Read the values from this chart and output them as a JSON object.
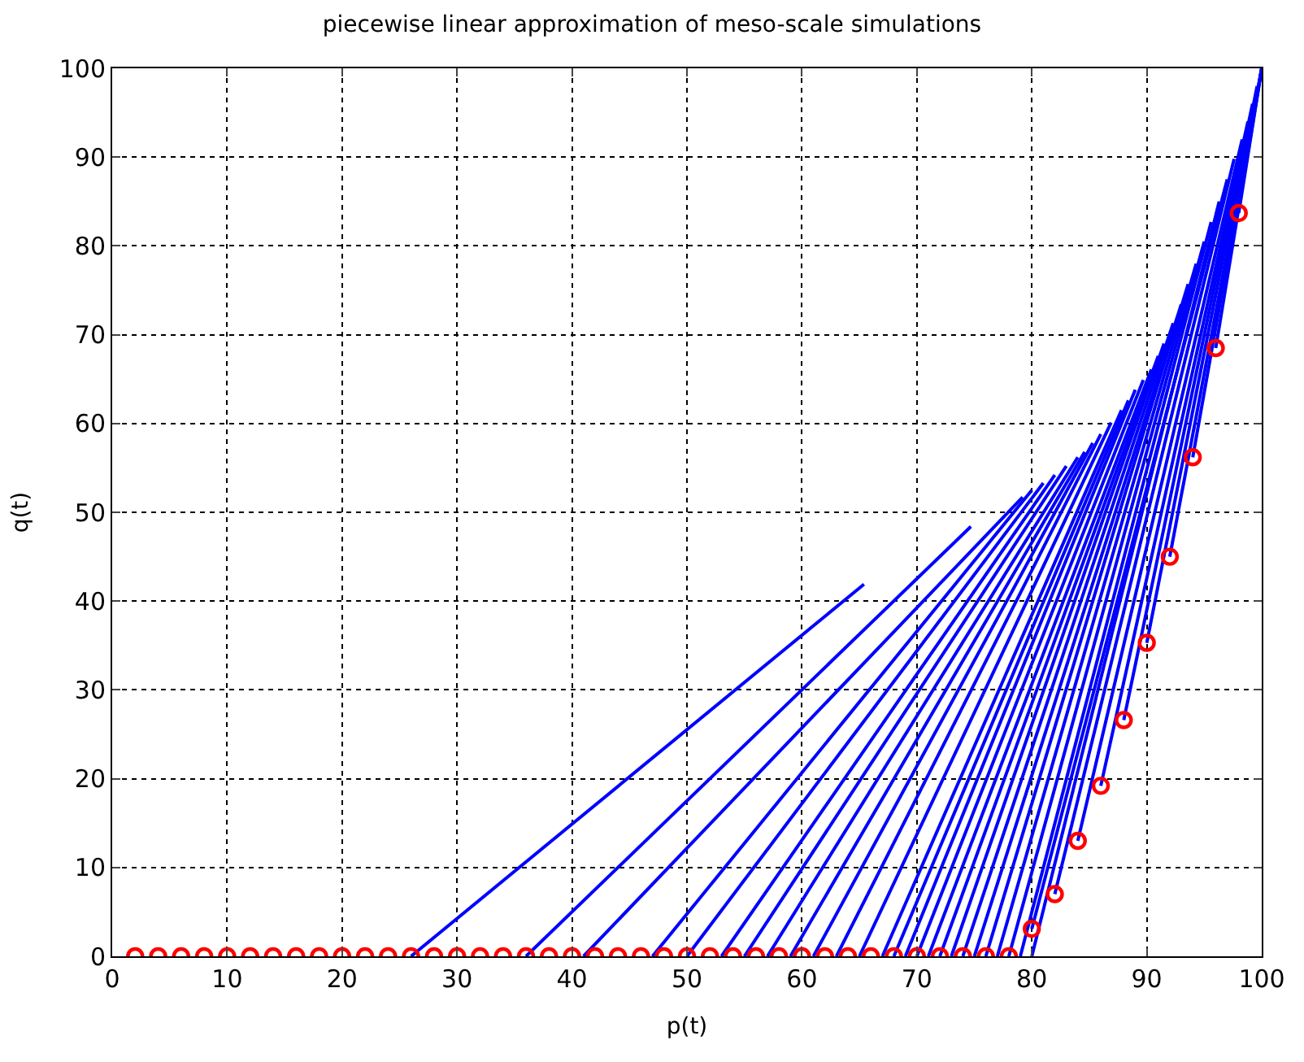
{
  "chart_data": {
    "type": "line",
    "title": "piecewise linear approximation of meso-scale simulations",
    "xlabel": "p(t)",
    "ylabel": "q(t)",
    "xlim": [
      0,
      100
    ],
    "ylim": [
      0,
      100
    ],
    "xticks": [
      0,
      10,
      20,
      30,
      40,
      50,
      60,
      70,
      80,
      90,
      100
    ],
    "yticks": [
      0,
      10,
      20,
      30,
      40,
      50,
      60,
      70,
      80,
      90,
      100
    ],
    "grid": true,
    "line_style": "solid",
    "series": [
      {
        "color": "#0000ff",
        "x": [
          26,
          65.4
        ],
        "values": [
          0,
          41.9
        ]
      },
      {
        "color": "#0000ff",
        "x": [
          36,
          74.7
        ],
        "values": [
          0,
          48.4
        ]
      },
      {
        "color": "#0000ff",
        "x": [
          41,
          79.2
        ],
        "values": [
          0,
          51.7
        ]
      },
      {
        "color": "#0000ff",
        "x": [
          47,
          80
        ],
        "values": [
          0,
          52.5
        ]
      },
      {
        "color": "#0000ff",
        "x": [
          50,
          81
        ],
        "values": [
          0,
          53.3
        ]
      },
      {
        "color": "#0000ff",
        "x": [
          53,
          82
        ],
        "values": [
          0,
          54.2
        ]
      },
      {
        "color": "#0000ff",
        "x": [
          55,
          83
        ],
        "values": [
          0,
          55.2
        ]
      },
      {
        "color": "#0000ff",
        "x": [
          57,
          84
        ],
        "values": [
          0,
          56.2
        ]
      },
      {
        "color": "#0000ff",
        "x": [
          59,
          84.6
        ],
        "values": [
          0,
          56.8
        ]
      },
      {
        "color": "#0000ff",
        "x": [
          61,
          85.3
        ],
        "values": [
          0,
          57.8
        ]
      },
      {
        "color": "#0000ff",
        "x": [
          63,
          86
        ],
        "values": [
          0,
          58.8
        ]
      },
      {
        "color": "#0000ff",
        "x": [
          65,
          86.9
        ],
        "values": [
          0,
          60.1
        ]
      },
      {
        "color": "#0000ff",
        "x": [
          67,
          87.8
        ],
        "values": [
          0,
          61.5
        ]
      },
      {
        "color": "#0000ff",
        "x": [
          68,
          88.4
        ],
        "values": [
          0,
          62.6
        ]
      },
      {
        "color": "#0000ff",
        "x": [
          69,
          89
        ],
        "values": [
          0,
          63.8
        ]
      },
      {
        "color": "#0000ff",
        "x": [
          70,
          89.7
        ],
        "values": [
          0,
          64.9
        ]
      },
      {
        "color": "#0000ff",
        "x": [
          71,
          90.4
        ],
        "values": [
          0,
          66.1
        ]
      },
      {
        "color": "#0000ff",
        "x": [
          72,
          91
        ],
        "values": [
          0,
          67.6
        ]
      },
      {
        "color": "#0000ff",
        "x": [
          73,
          91.5
        ],
        "values": [
          0,
          69
        ]
      },
      {
        "color": "#0000ff",
        "x": [
          74,
          92.3
        ],
        "values": [
          0,
          71.3
        ]
      },
      {
        "color": "#0000ff",
        "x": [
          75,
          93
        ],
        "values": [
          0,
          73.4
        ]
      },
      {
        "color": "#0000ff",
        "x": [
          76,
          93.6
        ],
        "values": [
          0,
          75.7
        ]
      },
      {
        "color": "#0000ff",
        "x": [
          77,
          94.3
        ],
        "values": [
          0,
          78
        ]
      },
      {
        "color": "#0000ff",
        "x": [
          78,
          95
        ],
        "values": [
          0,
          80.5
        ]
      },
      {
        "color": "#0000ff",
        "x": [
          79,
          95.6
        ],
        "values": [
          0,
          82.7
        ]
      },
      {
        "color": "#0000ff",
        "x": [
          80,
          96.3
        ],
        "values": [
          0,
          85
        ]
      },
      {
        "color": "#0000ff",
        "x": [
          80,
          97
        ],
        "values": [
          3.1,
          87.5
        ]
      },
      {
        "color": "#0000ff",
        "x": [
          82,
          97.6
        ],
        "values": [
          7,
          89.8
        ]
      },
      {
        "color": "#0000ff",
        "x": [
          84,
          98.3
        ],
        "values": [
          13,
          92
        ]
      },
      {
        "color": "#0000ff",
        "x": [
          86,
          98.8
        ],
        "values": [
          19.2,
          94
        ]
      },
      {
        "color": "#0000ff",
        "x": [
          88,
          99.2
        ],
        "values": [
          26.6,
          96
        ]
      },
      {
        "color": "#0000ff",
        "x": [
          90,
          99.6
        ],
        "values": [
          35.3,
          98
        ]
      },
      {
        "color": "#0000ff",
        "x": [
          92,
          100
        ],
        "values": [
          45,
          100
        ]
      },
      {
        "color": "#0000ff",
        "x": [
          94,
          100
        ],
        "values": [
          56.2,
          100
        ]
      },
      {
        "color": "#0000ff",
        "x": [
          96,
          100
        ],
        "values": [
          68.5,
          100
        ]
      },
      {
        "color": "#0000ff",
        "x": [
          98,
          100
        ],
        "values": [
          83.7,
          100
        ]
      },
      {
        "type": "scatter",
        "color": "#ff0000",
        "marker": "circle",
        "x": [
          2,
          4,
          6,
          8,
          10,
          12,
          14,
          16,
          18,
          20,
          22,
          24,
          26,
          28,
          30,
          32,
          34,
          36,
          38,
          40,
          42,
          44,
          46,
          48,
          50,
          52,
          54,
          56,
          58,
          60,
          62,
          64,
          66,
          68,
          70,
          72,
          74,
          76,
          78,
          80,
          82,
          84,
          86,
          88,
          90,
          92,
          94,
          96,
          98
        ],
        "values": [
          0,
          0,
          0,
          0,
          0,
          0,
          0,
          0,
          0,
          0,
          0,
          0,
          0,
          0,
          0,
          0,
          0,
          0,
          0,
          0,
          0,
          0,
          0,
          0,
          0,
          0,
          0,
          0,
          0,
          0,
          0,
          0,
          0,
          0,
          0,
          0,
          0,
          0,
          0,
          3.1,
          7,
          13,
          19.2,
          26.6,
          35.3,
          45,
          56.2,
          68.5,
          83.7
        ]
      }
    ]
  }
}
